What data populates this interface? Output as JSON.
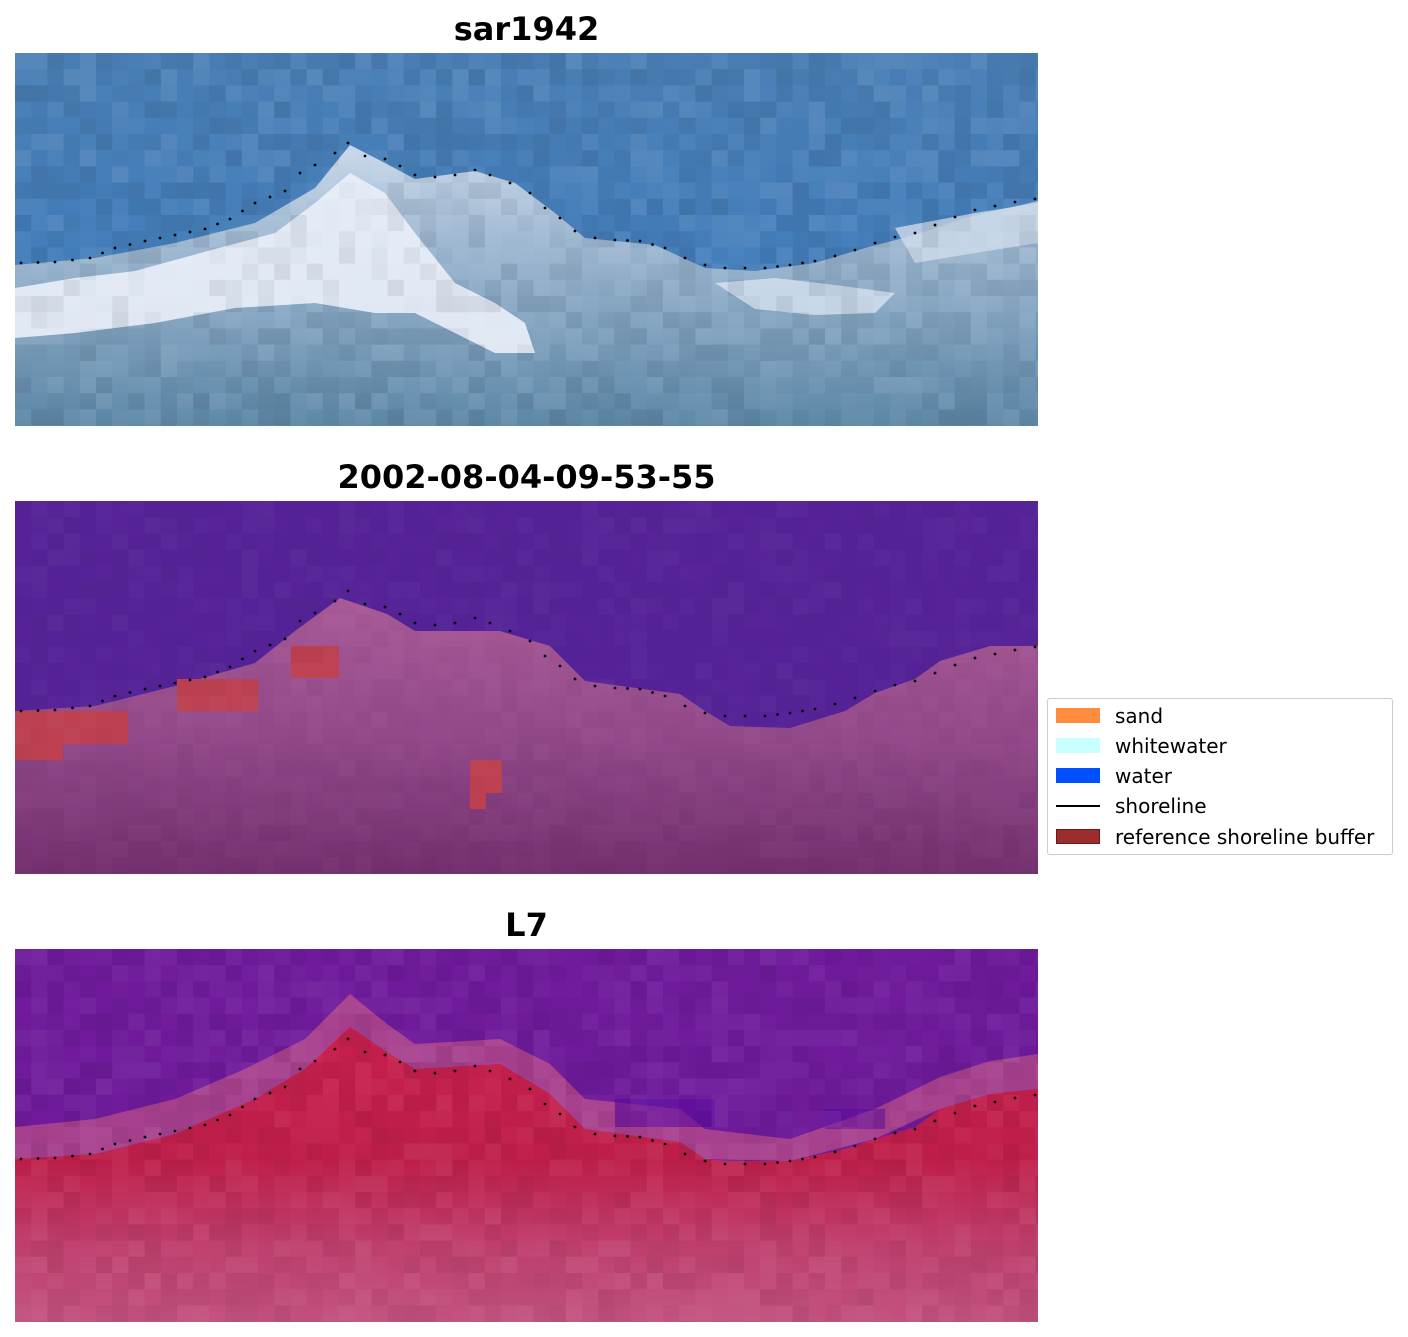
{
  "panels": [
    {
      "title": "sar1942",
      "content": "RGB satellite image tile with the detected shoreline plotted as black dots"
    },
    {
      "title": "2002-08-04-09-53-55",
      "content": "classified image overlaid with the reference shoreline buffer and the detected shoreline"
    },
    {
      "title": "L7",
      "content": "water index image with the detected shoreline plotted as black dots"
    }
  ],
  "legend": {
    "items": [
      {
        "label": "sand",
        "color": "#ff8c3c",
        "kind": "patch"
      },
      {
        "label": "whitewater",
        "color": "#c8ffff",
        "kind": "patch"
      },
      {
        "label": "water",
        "color": "#0050ff",
        "kind": "patch"
      },
      {
        "label": "shoreline",
        "color": "#000000",
        "kind": "line"
      },
      {
        "label": "reference shoreline buffer",
        "color": "#9b2d2d",
        "kind": "patch"
      }
    ]
  },
  "colors": {
    "rgb_water": "#4a7fb6",
    "rgb_surf": "#e6ecf6",
    "rgb_land": "#5f8cab",
    "class_water": "#552397",
    "class_land": "#9a4f8b",
    "buffer": "#bd4151",
    "index_water": "#6f1b9b",
    "index_land": "#c8204e"
  }
}
